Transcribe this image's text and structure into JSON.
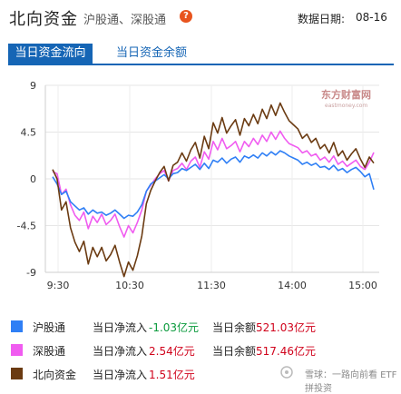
{
  "header": {
    "title": "北向资金",
    "subtitle": "沪股通、深股通",
    "date_label": "数据日期:",
    "date_value": "08-16"
  },
  "tabs": [
    {
      "label": "当日资金流向",
      "active": true
    },
    {
      "label": "当日资金余额",
      "active": false
    }
  ],
  "logo": {
    "name": "东方财富网",
    "sub": "eastmoney.com"
  },
  "chart_data": {
    "type": "line",
    "ylim": [
      -9,
      9
    ],
    "yticks": [
      "9",
      "4.5",
      "0",
      "-4.5",
      "-9"
    ],
    "xticks": [
      "9:30",
      "10:30",
      "11:30",
      "14:00",
      "15:00"
    ],
    "series": [
      {
        "name": "沪股通",
        "color": "#2f7ff5",
        "values": [
          0.2,
          -0.5,
          -1.5,
          -1.2,
          -2.2,
          -2.6,
          -3.0,
          -2.8,
          -3.4,
          -3.0,
          -3.3,
          -3.2,
          -3.5,
          -3.3,
          -3.0,
          -3.4,
          -3.8,
          -3.5,
          -3.6,
          -3.2,
          -2.5,
          -1.2,
          -0.5,
          -0.2,
          0.1,
          0.4,
          0.0,
          0.5,
          0.6,
          1.0,
          0.8,
          1.1,
          1.4,
          0.9,
          1.5,
          1.0,
          1.8,
          1.6,
          2.0,
          1.5,
          1.9,
          2.1,
          1.6,
          2.2,
          2.0,
          2.3,
          2.0,
          2.5,
          2.2,
          2.6,
          2.3,
          2.7,
          2.5,
          2.2,
          2.0,
          1.8,
          1.4,
          1.6,
          1.3,
          1.5,
          1.1,
          1.2,
          0.9,
          1.3,
          0.8,
          1.0,
          0.6,
          0.9,
          1.1,
          0.7,
          0.2,
          0.5,
          -1.03
        ]
      },
      {
        "name": "深股通",
        "color": "#f05cf0",
        "values": [
          0.7,
          0.5,
          -1.5,
          -1.0,
          -2.5,
          -3.5,
          -4.0,
          -3.2,
          -4.8,
          -3.6,
          -4.2,
          -3.4,
          -4.4,
          -4.0,
          -3.4,
          -4.6,
          -5.6,
          -4.5,
          -5.2,
          -4.2,
          -3.0,
          -1.2,
          -0.6,
          0.0,
          0.5,
          0.8,
          -0.2,
          0.8,
          1.0,
          1.5,
          0.9,
          1.7,
          2.1,
          1.1,
          2.6,
          1.9,
          3.6,
          2.8,
          3.9,
          2.9,
          3.2,
          3.6,
          2.6,
          3.6,
          3.1,
          3.9,
          3.3,
          4.2,
          3.6,
          4.5,
          3.8,
          4.6,
          3.9,
          3.4,
          3.2,
          3.0,
          2.5,
          2.7,
          2.2,
          2.4,
          1.8,
          2.1,
          1.6,
          2.2,
          1.4,
          1.7,
          1.2,
          1.5,
          1.8,
          1.2,
          0.9,
          1.6,
          2.54
        ]
      },
      {
        "name": "北向资金",
        "color": "#6b3b12",
        "values": [
          0.9,
          0.0,
          -3.0,
          -2.2,
          -4.7,
          -6.1,
          -7.0,
          -6.0,
          -8.2,
          -6.6,
          -7.5,
          -6.6,
          -7.9,
          -7.3,
          -6.4,
          -8.0,
          -9.4,
          -8.0,
          -8.8,
          -7.4,
          -5.5,
          -2.4,
          -1.1,
          -0.2,
          0.6,
          1.2,
          -0.2,
          1.3,
          1.6,
          2.5,
          1.7,
          2.8,
          3.5,
          2.0,
          4.1,
          2.9,
          5.4,
          4.4,
          5.9,
          4.4,
          5.1,
          5.7,
          4.2,
          5.8,
          5.1,
          6.2,
          5.3,
          6.7,
          5.8,
          7.1,
          6.1,
          7.3,
          6.4,
          5.6,
          5.2,
          4.8,
          3.9,
          4.3,
          3.5,
          3.9,
          2.9,
          3.3,
          2.5,
          3.5,
          2.2,
          2.7,
          1.8,
          2.4,
          2.9,
          1.9,
          1.1,
          2.1,
          1.51
        ]
      }
    ]
  },
  "legend": [
    {
      "name": "沪股通",
      "color": "#2f7ff5",
      "flow_label": "当日净流入",
      "flow_value": "-1.03亿元",
      "flow_color": "#0a9a3c",
      "balance_label": "当日余额",
      "balance_value": "521.03亿元"
    },
    {
      "name": "深股通",
      "color": "#f05cf0",
      "flow_label": "当日净流入",
      "flow_value": "2.54亿元",
      "flow_color": "#d0021b",
      "balance_label": "当日余额",
      "balance_value": "517.46亿元"
    },
    {
      "name": "北向资金",
      "color": "#6b3b12",
      "flow_label": "当日净流入",
      "flow_value": "1.51亿元",
      "flow_color": "#d0021b"
    }
  ],
  "watermark": "雪球：一路向前看 ETF拼投资"
}
